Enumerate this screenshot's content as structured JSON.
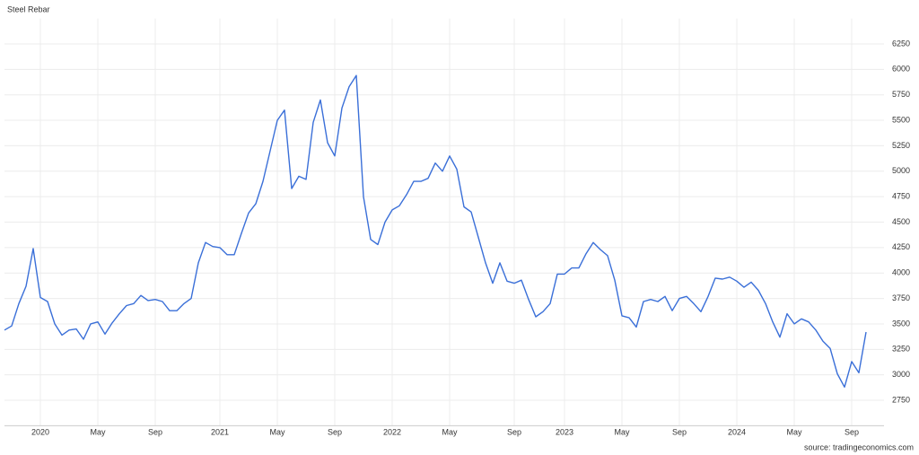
{
  "chart_data": {
    "type": "line",
    "title": "Steel Rebar",
    "source": "source: tradingeconomics.com",
    "categories": [
      null,
      null,
      null,
      null,
      null,
      "2020",
      null,
      null,
      null,
      null,
      null,
      null,
      null,
      "May",
      null,
      null,
      null,
      null,
      null,
      null,
      null,
      "Sep",
      null,
      null,
      null,
      null,
      null,
      null,
      null,
      null,
      "2021",
      null,
      null,
      null,
      null,
      null,
      null,
      null,
      "May",
      null,
      null,
      null,
      null,
      null,
      null,
      null,
      "Sep",
      null,
      null,
      null,
      null,
      null,
      null,
      null,
      "2022",
      null,
      null,
      null,
      null,
      null,
      null,
      null,
      "May",
      null,
      null,
      null,
      null,
      null,
      null,
      null,
      null,
      "Sep",
      null,
      null,
      null,
      null,
      null,
      null,
      "2023",
      null,
      null,
      null,
      null,
      null,
      null,
      null,
      "May",
      null,
      null,
      null,
      null,
      null,
      null,
      null,
      "Sep",
      null,
      null,
      null,
      null,
      null,
      null,
      null,
      "2024",
      null,
      null,
      null,
      null,
      null,
      null,
      null,
      "May",
      null,
      null,
      null,
      null,
      null,
      null,
      null,
      "Sep",
      null,
      null
    ],
    "values": [
      3440,
      3480,
      3700,
      3870,
      4240,
      3760,
      3720,
      3500,
      3390,
      3440,
      3450,
      3350,
      3500,
      3520,
      3400,
      3510,
      3600,
      3680,
      3700,
      3780,
      3730,
      3740,
      3720,
      3630,
      3630,
      3700,
      3750,
      4100,
      4300,
      4260,
      4250,
      4180,
      4180,
      4390,
      4590,
      4680,
      4900,
      5200,
      5500,
      5600,
      4830,
      4950,
      4920,
      5480,
      5700,
      5280,
      5150,
      5620,
      5830,
      5940,
      4750,
      4330,
      4280,
      4500,
      4620,
      4660,
      4770,
      4900,
      4900,
      4930,
      5080,
      5000,
      5150,
      5020,
      4650,
      4600,
      4350,
      4100,
      3900,
      4100,
      3920,
      3900,
      3930,
      3740,
      3570,
      3620,
      3700,
      3990,
      3990,
      4050,
      4050,
      4190,
      4300,
      4230,
      4170,
      3930,
      3580,
      3560,
      3470,
      3720,
      3740,
      3720,
      3770,
      3630,
      3750,
      3770,
      3700,
      3620,
      3770,
      3950,
      3940,
      3960,
      3920,
      3860,
      3910,
      3830,
      3700,
      3520,
      3370,
      3600,
      3500,
      3550,
      3520,
      3440,
      3330,
      3260,
      3010,
      2880,
      3130,
      3020,
      3420
    ],
    "color": "#3a6fd8",
    "ylim": [
      2500,
      6500
    ],
    "yticks": [
      2750,
      3000,
      3250,
      3500,
      3750,
      4000,
      4250,
      4500,
      4750,
      5000,
      5250,
      5500,
      5750,
      6000,
      6250
    ],
    "grid": true
  }
}
